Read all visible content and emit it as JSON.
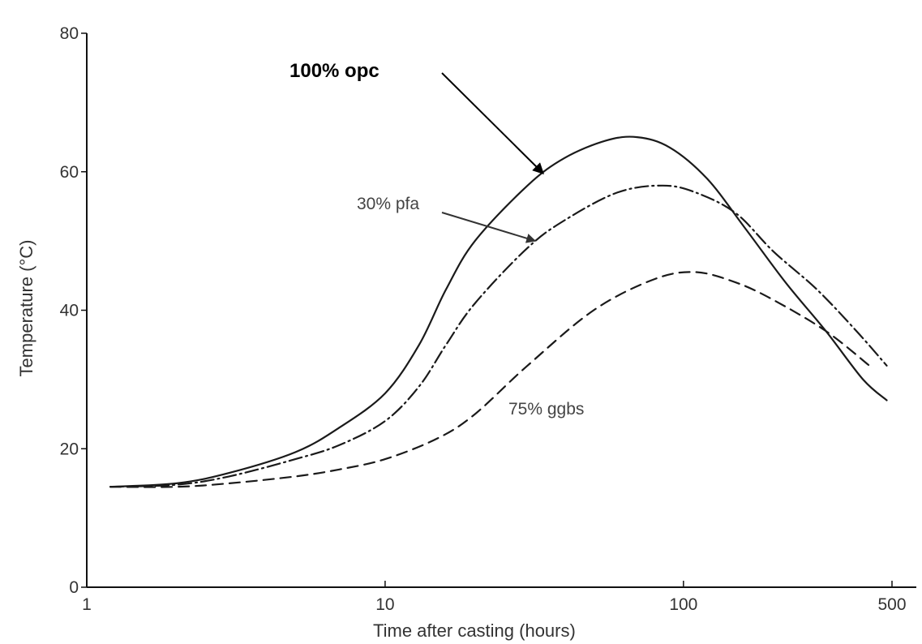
{
  "chart_data": {
    "type": "line",
    "title": "",
    "xlabel": "Time after casting (hours)",
    "ylabel": "Temperature (°C)",
    "x_scale": "log",
    "xlim": [
      1,
      500
    ],
    "ylim": [
      0,
      80
    ],
    "x_ticks": [
      1,
      10,
      100,
      500
    ],
    "x_tick_labels": [
      "1",
      "10",
      "100",
      "500"
    ],
    "y_ticks": [
      0,
      20,
      40,
      60,
      80
    ],
    "y_tick_labels": [
      "0",
      "20",
      "40",
      "60",
      "80"
    ],
    "grid": false,
    "series": [
      {
        "name": "100% opc",
        "line_style": "solid",
        "points": [
          [
            1.2,
            14.5
          ],
          [
            2,
            15
          ],
          [
            3,
            16.5
          ],
          [
            5,
            19.5
          ],
          [
            7,
            23
          ],
          [
            10,
            28
          ],
          [
            13,
            35
          ],
          [
            16,
            43
          ],
          [
            20,
            50
          ],
          [
            30,
            58
          ],
          [
            40,
            62
          ],
          [
            55,
            64.5
          ],
          [
            70,
            65
          ],
          [
            90,
            63.5
          ],
          [
            120,
            59
          ],
          [
            160,
            52
          ],
          [
            220,
            44
          ],
          [
            300,
            37
          ],
          [
            400,
            30
          ],
          [
            480,
            27
          ]
        ]
      },
      {
        "name": "30% pfa",
        "line_style": "dash-dot",
        "points": [
          [
            1.2,
            14.5
          ],
          [
            2,
            14.8
          ],
          [
            3,
            16
          ],
          [
            5,
            18.5
          ],
          [
            7,
            20.5
          ],
          [
            10,
            24
          ],
          [
            13,
            29
          ],
          [
            16,
            35
          ],
          [
            20,
            41
          ],
          [
            30,
            49
          ],
          [
            40,
            53
          ],
          [
            60,
            57
          ],
          [
            85,
            58
          ],
          [
            110,
            57
          ],
          [
            150,
            54
          ],
          [
            200,
            48.5
          ],
          [
            280,
            43
          ],
          [
            380,
            37
          ],
          [
            480,
            32
          ]
        ]
      },
      {
        "name": "75% ggbs",
        "line_style": "dashed",
        "points": [
          [
            1.2,
            14.5
          ],
          [
            2,
            14.5
          ],
          [
            3,
            15
          ],
          [
            5,
            16
          ],
          [
            7,
            17
          ],
          [
            10,
            18.5
          ],
          [
            15,
            21.5
          ],
          [
            20,
            25
          ],
          [
            30,
            32
          ],
          [
            50,
            40
          ],
          [
            80,
            44.5
          ],
          [
            110,
            45.5
          ],
          [
            150,
            44
          ],
          [
            200,
            41.5
          ],
          [
            300,
            37
          ],
          [
            420,
            32
          ]
        ]
      }
    ],
    "annotations": [
      "100% opc",
      "30% pfa",
      "75% ggbs"
    ]
  }
}
